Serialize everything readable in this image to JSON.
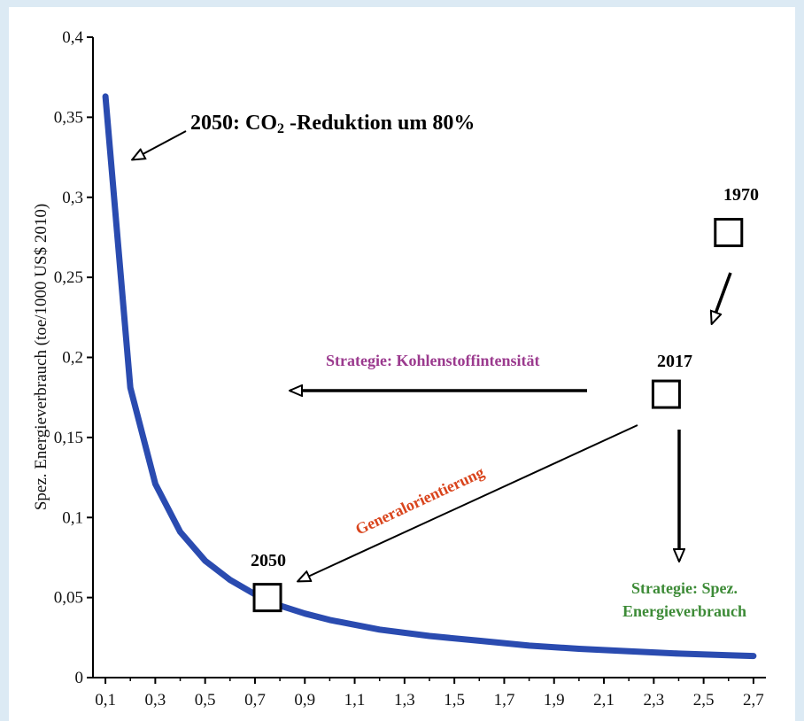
{
  "chart_data": {
    "type": "line",
    "ylabel": "Spez. Energieverbrauch (toe/1000 US$ 2010)",
    "xlabel": "",
    "xlim": [
      0.05,
      2.75
    ],
    "ylim": [
      0,
      0.4
    ],
    "x_ticks": [
      "0,1",
      "0,3",
      "0,5",
      "0,7",
      "0,9",
      "1,1",
      "1,3",
      "1,5",
      "1,7",
      "1,9",
      "2,1",
      "2,3",
      "2,5",
      "2,7"
    ],
    "x_tick_values": [
      0.1,
      0.3,
      0.5,
      0.7,
      0.9,
      1.1,
      1.3,
      1.5,
      1.7,
      1.9,
      2.1,
      2.3,
      2.5,
      2.7
    ],
    "y_ticks": [
      "0",
      "0,05",
      "0,1",
      "0,15",
      "0,2",
      "0,25",
      "0,3",
      "0,35",
      "0,4"
    ],
    "y_tick_values": [
      0,
      0.05,
      0.1,
      0.15,
      0.2,
      0.25,
      0.3,
      0.35,
      0.4
    ],
    "series": [
      {
        "color": "#2a4bb0",
        "x": [
          0.1,
          0.2,
          0.3,
          0.4,
          0.5,
          0.6,
          0.7,
          0.8,
          0.9,
          1.0,
          1.2,
          1.4,
          1.6,
          1.8,
          2.0,
          2.2,
          2.4,
          2.6,
          2.8
        ],
        "y": [
          0.363,
          0.181,
          0.121,
          0.091,
          0.073,
          0.061,
          0.052,
          0.045,
          0.04,
          0.036,
          0.03,
          0.026,
          0.023,
          0.02,
          0.018,
          0.0165,
          0.015,
          0.014,
          0.013
        ]
      }
    ],
    "points": [
      {
        "label": "1970",
        "x": 2.6,
        "y": 0.278
      },
      {
        "label": "2017",
        "x": 2.35,
        "y": 0.177
      },
      {
        "label": "2050",
        "x": 0.75,
        "y": 0.05
      }
    ],
    "annotations": {
      "co2_prefix": "2050: CO",
      "co2_sub": "2",
      "co2_suffix": " -Reduktion um 80%",
      "strategy_carbon": "Strategie: Kohlenstoffintensität",
      "general": "Generalorientierung",
      "strategy_energy_line1": "Strategie: Spez.",
      "strategy_energy_line2": "Energieverbrauch"
    },
    "colors": {
      "strategy_carbon": "#9b3a8e",
      "general": "#d9441c",
      "strategy_energy": "#3d8b37"
    }
  }
}
